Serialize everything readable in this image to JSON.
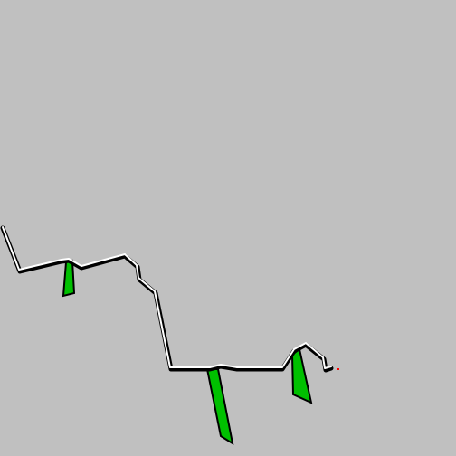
{
  "scene": {
    "background_color": "#c0c0c0",
    "track_outline_color": "#000000",
    "track_surface_color": "#ffffff",
    "fill_color": "#00c000",
    "marker_color": "#ff0000"
  }
}
